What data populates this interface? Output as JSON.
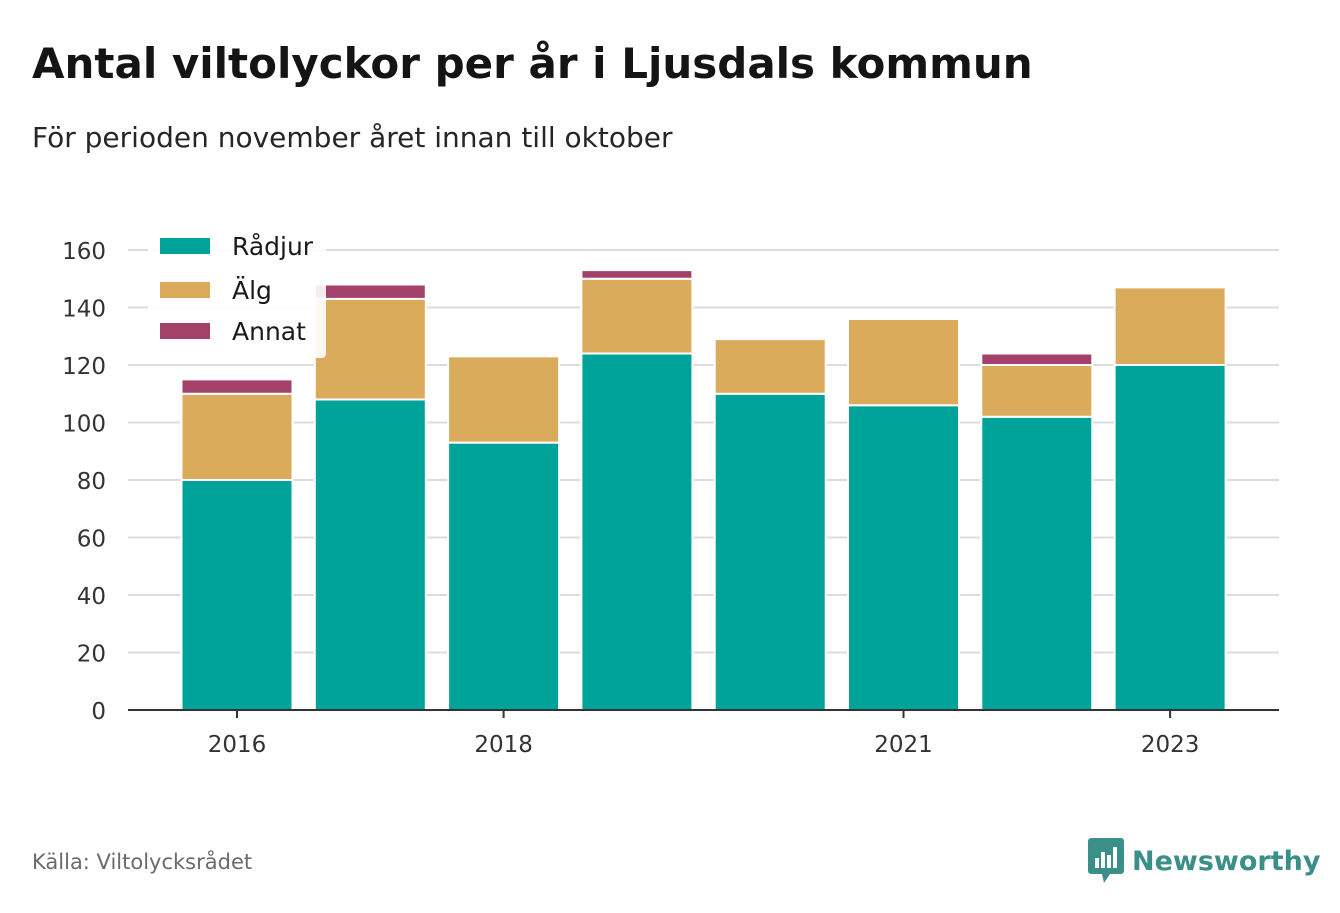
{
  "title": "Antal viltolyckor per år i Ljusdals kommun",
  "subtitle": "För perioden november året innan till oktober",
  "source": "Källa: Viltolycksrådet",
  "brand": "Newsworthy",
  "chart_data": {
    "type": "bar",
    "stacked": true,
    "categories": [
      "2016",
      "2017",
      "2018",
      "2019",
      "2020",
      "2021",
      "2022",
      "2023"
    ],
    "x_tick_labels": [
      "2016",
      "2018",
      "2021",
      "2023"
    ],
    "y_ticks": [
      0,
      20,
      40,
      60,
      80,
      100,
      120,
      140,
      160
    ],
    "ylim": [
      0,
      160
    ],
    "grid": true,
    "legend_position": "top-left",
    "series": [
      {
        "name": "Rådjur",
        "color": "#00a39a",
        "values": [
          80,
          108,
          93,
          124,
          110,
          106,
          102,
          120
        ]
      },
      {
        "name": "Älg",
        "color": "#d9ab5a",
        "values": [
          30,
          35,
          30,
          26,
          19,
          30,
          18,
          27
        ]
      },
      {
        "name": "Annat",
        "color": "#a4416a",
        "values": [
          5,
          5,
          0,
          3,
          0,
          0,
          4,
          0
        ]
      }
    ]
  }
}
